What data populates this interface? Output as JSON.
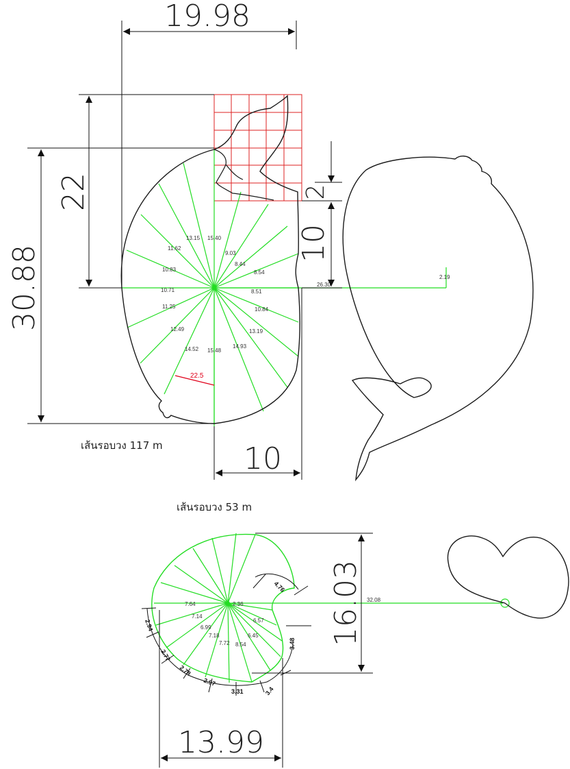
{
  "colors": {
    "construction_green": "#22dd22",
    "outline_black": "#1a1a1a",
    "grid_red": "#dd2222",
    "angle_red": "#e0001a"
  },
  "dims": {
    "width_top": "19.98",
    "height_total": "30.88",
    "height_upper": "22",
    "tail_height": "10",
    "tail_small": "2",
    "base_width": "10",
    "heart_height": "16.03",
    "heart_width": "13.99"
  },
  "captions": {
    "perimeter_large": "เส้นรอบวง 117 m",
    "perimeter_small": "เส้นรอบวง 53 m"
  },
  "angle": "22.5",
  "large_radials": [
    "13.15",
    "15.40",
    "11.62",
    "9.03",
    "8.44",
    "10.83",
    "8.54",
    "10.71",
    "8.51",
    "11.25",
    "10.84",
    "12.49",
    "13.19",
    "14.52",
    "15.48",
    "14.93"
  ],
  "large_extra": {
    "long_line": "26.30",
    "end_value": "2.19"
  },
  "small_radials": [
    "7.64",
    "2.36",
    "7.14",
    "6.57",
    "6.99",
    "6.45",
    "7.18",
    "7.72",
    "8.54"
  ],
  "small_extra": {
    "long_line": "32.08"
  },
  "segments": [
    "2.94",
    "2.77",
    "2.78",
    "2.97",
    "3.31",
    "3.4",
    "3.48",
    "4.76"
  ]
}
